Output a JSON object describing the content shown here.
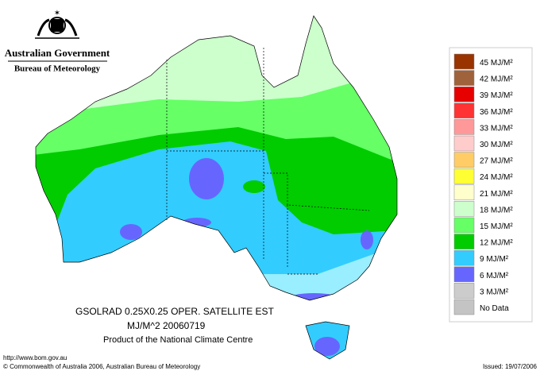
{
  "header": {
    "government": "Australian Government",
    "bureau": "Bureau of Meteorology"
  },
  "legend": {
    "items": [
      {
        "label": "45 MJ/M²",
        "color": "#993300"
      },
      {
        "label": "42 MJ/M²",
        "color": "#a0623a"
      },
      {
        "label": "39 MJ/M²",
        "color": "#e60000"
      },
      {
        "label": "36 MJ/M²",
        "color": "#ff3333"
      },
      {
        "label": "33 MJ/M²",
        "color": "#ff9999"
      },
      {
        "label": "30 MJ/M²",
        "color": "#ffcccc"
      },
      {
        "label": "27 MJ/M²",
        "color": "#ffcc66"
      },
      {
        "label": "24 MJ/M²",
        "color": "#ffff33"
      },
      {
        "label": "21 MJ/M²",
        "color": "#ffffcc"
      },
      {
        "label": "18 MJ/M²",
        "color": "#ccffcc"
      },
      {
        "label": "15 MJ/M²",
        "color": "#66ff66"
      },
      {
        "label": "12 MJ/M²",
        "color": "#00cc00"
      },
      {
        "label": "9 MJ/M²",
        "color": "#33ccff"
      },
      {
        "label": "6 MJ/M²",
        "color": "#6666ff"
      },
      {
        "label": "3 MJ/M²",
        "color": "#cccccc"
      },
      {
        "label": "No Data",
        "color": "#c4c4c4"
      }
    ]
  },
  "caption": {
    "line1": "GSOLRAD    0.25X0.25 OPER. SATELLITE EST",
    "line2": "MJ/M^2  20060719",
    "line3": "Product of the National Climate Centre"
  },
  "footer": {
    "url": "http://www.bom.gov.au",
    "copyright": "© Commonwealth of Australia 2006, Australian Bureau of Meteorology",
    "issued": "Issued: 19/07/2006"
  }
}
